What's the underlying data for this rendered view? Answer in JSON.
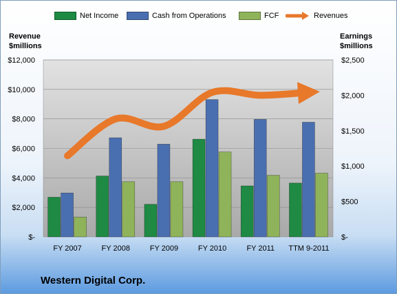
{
  "legend": {
    "net_income": "Net Income",
    "cash_ops": "Cash from Operations",
    "fcf": "FCF",
    "revenues": "Revenues"
  },
  "axes": {
    "left_title_line1": "Revenue",
    "left_title_line2": "$millions",
    "right_title_line1": "Earnings",
    "right_title_line2": "$millions"
  },
  "company": "Western Digital Corp.",
  "colors": {
    "net_income": "#1e8a43",
    "cash_ops": "#4a6fb0",
    "fcf": "#8fb35a",
    "revenues": "#e8782a",
    "plot_bg": "#cccccc"
  },
  "chart_data": {
    "type": "bar",
    "categories": [
      "FY 2007",
      "FY 2008",
      "FY 2009",
      "FY 2010",
      "FY 2011",
      "TTM 9-2011"
    ],
    "series": [
      {
        "name": "Net Income",
        "axis": "right",
        "type": "bar",
        "values": [
          560,
          860,
          460,
          1380,
          720,
          760
        ]
      },
      {
        "name": "Cash from Operations",
        "axis": "right",
        "type": "bar",
        "values": [
          620,
          1400,
          1310,
          1940,
          1660,
          1620
        ]
      },
      {
        "name": "FCF",
        "axis": "right",
        "type": "bar",
        "values": [
          280,
          780,
          780,
          1200,
          870,
          900
        ]
      },
      {
        "name": "Revenues",
        "axis": "left",
        "type": "line",
        "values": [
          5500,
          8000,
          7500,
          9800,
          9600,
          9800
        ]
      }
    ],
    "left_axis": {
      "min": 0,
      "max": 12000,
      "ticks": [
        "$-",
        "$2,000",
        "$4,000",
        "$6,000",
        "$8,000",
        "$10,000",
        "$12,000"
      ]
    },
    "right_axis": {
      "min": 0,
      "max": 2500,
      "ticks": [
        "$-",
        "$500",
        "$1,000",
        "$1,500",
        "$2,000",
        "$2,500"
      ]
    },
    "grid": true,
    "legend_position": "top"
  }
}
